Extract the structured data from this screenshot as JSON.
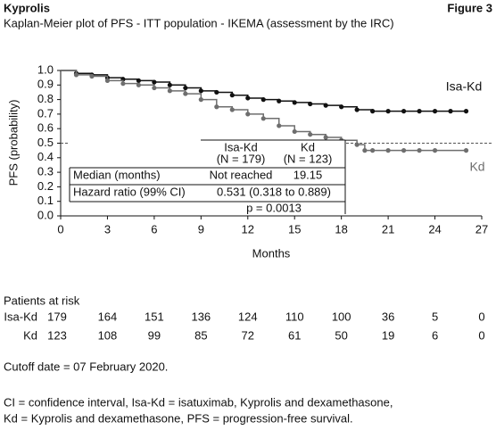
{
  "header": {
    "brand": "Kyprolis",
    "figure": "Figure 3"
  },
  "chart_data": {
    "type": "line",
    "step": true,
    "title": "Kaplan-Meier plot of PFS - ITT population - IKEMA (assessment by the IRC)",
    "x_label": "Months",
    "y_label": "PFS (probability)",
    "xlim": [
      0,
      27
    ],
    "xticks": [
      0,
      3,
      6,
      9,
      12,
      15,
      18,
      21,
      24,
      27
    ],
    "ylim": [
      0,
      1
    ],
    "yticks": [
      {
        "value": 0,
        "label": "0.0"
      },
      0.1,
      0.2,
      0.3,
      0.4,
      0.5,
      0.6,
      0.7,
      0.8,
      0.9,
      {
        "value": 1,
        "label": "1.0"
      }
    ],
    "reference_line": 0.5,
    "series": [
      {
        "name": "Isa-Kd",
        "color": "#111111",
        "x": [
          0,
          1,
          2,
          3,
          4,
          5,
          6,
          7,
          8,
          9,
          10,
          11,
          12,
          13,
          14,
          15,
          16,
          17,
          18,
          19,
          20,
          21,
          22,
          23,
          24,
          25,
          26
        ],
        "values": [
          1,
          0.98,
          0.97,
          0.95,
          0.94,
          0.93,
          0.92,
          0.9,
          0.88,
          0.86,
          0.85,
          0.83,
          0.81,
          0.8,
          0.79,
          0.78,
          0.77,
          0.76,
          0.75,
          0.73,
          0.72,
          0.72,
          0.72,
          0.72,
          0.72,
          0.72,
          0.72
        ]
      },
      {
        "name": "Kd",
        "color": "#6e6e6e",
        "x": [
          0,
          1,
          2,
          3,
          4,
          5,
          6,
          7,
          8,
          9,
          10,
          11,
          12,
          13,
          14,
          15,
          16,
          17,
          18,
          19,
          19.5,
          20,
          21,
          22,
          23,
          24,
          26
        ],
        "values": [
          1,
          0.97,
          0.96,
          0.93,
          0.91,
          0.9,
          0.88,
          0.86,
          0.84,
          0.8,
          0.75,
          0.73,
          0.7,
          0.67,
          0.62,
          0.58,
          0.56,
          0.54,
          0.52,
          0.49,
          0.45,
          0.45,
          0.45,
          0.45,
          0.45,
          0.45,
          0.45
        ]
      }
    ]
  },
  "table": {
    "col_headers": [
      [
        "Isa-Kd",
        "(N = 179)"
      ],
      [
        "Kd",
        "(N = 123)"
      ]
    ],
    "rows": [
      [
        "Median (months)",
        "Not reached",
        "19.15"
      ],
      [
        "Hazard ratio (99% CI)",
        "0.531 (0.318 to 0.889)"
      ],
      [
        "p = 0.0013"
      ]
    ]
  },
  "risk_table": {
    "title": "Patients at risk",
    "rows": [
      {
        "name": "Isa-Kd",
        "values": [
          179,
          164,
          151,
          136,
          124,
          110,
          100,
          36,
          5,
          0
        ]
      },
      {
        "name": "Kd",
        "values": [
          123,
          108,
          99,
          85,
          72,
          61,
          50,
          19,
          6,
          0
        ]
      }
    ]
  },
  "footnotes": [
    "Cutoff date = 07 February 2020.",
    "CI = confidence interval, Isa-Kd = isatuximab, Kyprolis and dexamethasone,",
    "Kd = Kyprolis and dexamethasone, PFS = progression-free survival."
  ]
}
